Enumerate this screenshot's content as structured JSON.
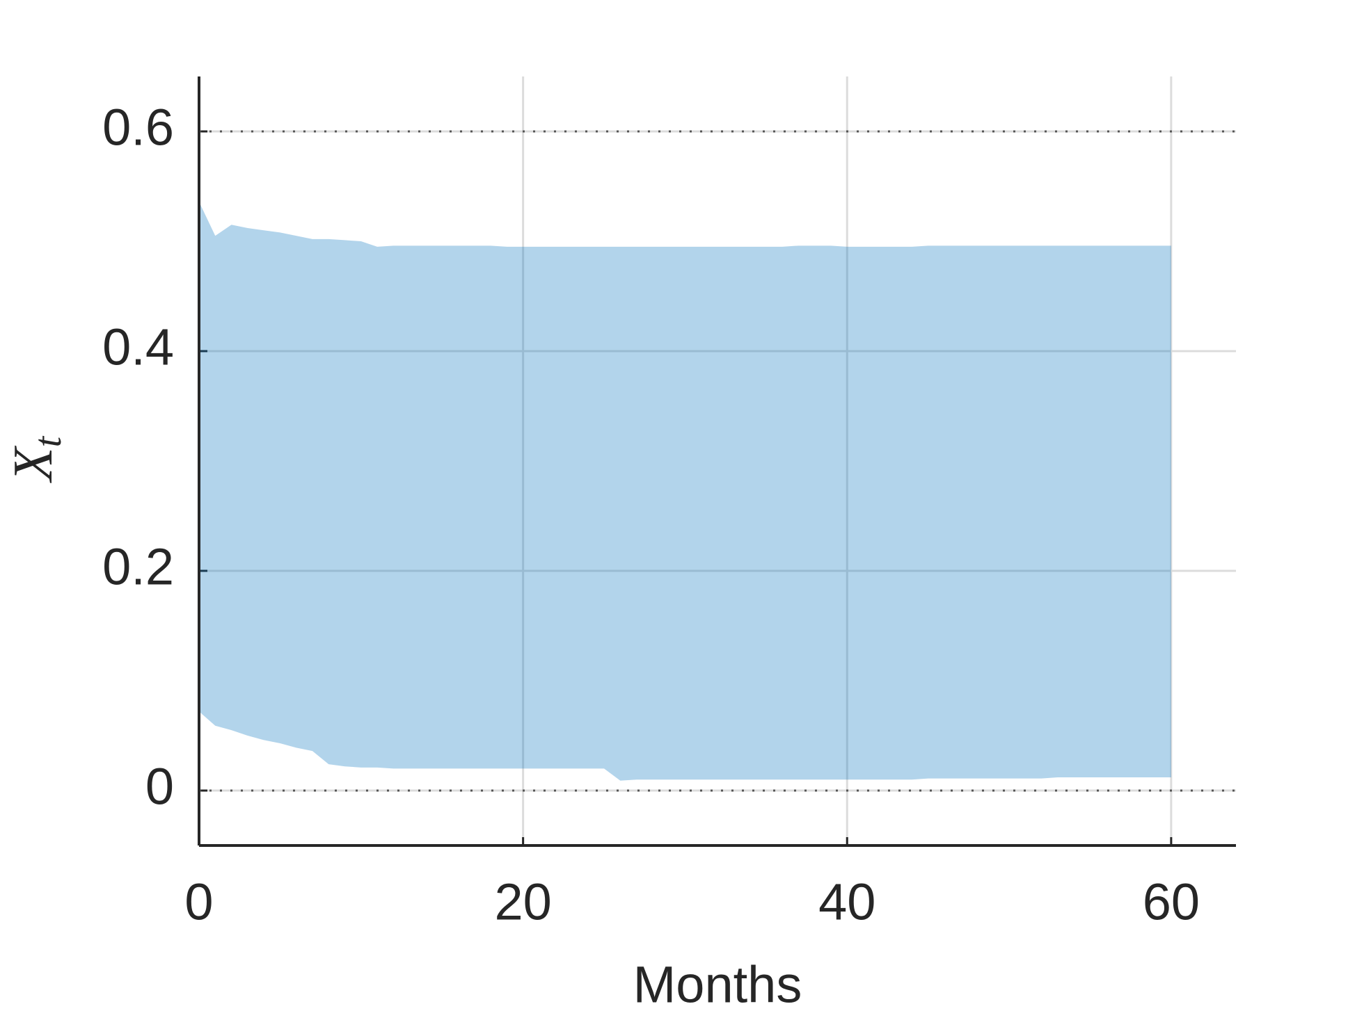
{
  "chart_data": {
    "type": "band",
    "xlabel": "Months",
    "ylabel": "X",
    "ylabel_subscript": "t",
    "x": [
      0,
      1,
      2,
      3,
      4,
      5,
      6,
      7,
      8,
      9,
      10,
      11,
      12,
      13,
      14,
      15,
      16,
      17,
      18,
      19,
      20,
      21,
      22,
      23,
      24,
      25,
      26,
      27,
      28,
      29,
      30,
      31,
      32,
      33,
      34,
      35,
      36,
      37,
      38,
      39,
      40,
      41,
      42,
      43,
      44,
      45,
      46,
      47,
      48,
      49,
      50,
      51,
      52,
      53,
      54,
      55,
      56,
      57,
      58,
      59,
      60
    ],
    "upper": [
      0.536,
      0.505,
      0.515,
      0.512,
      0.51,
      0.508,
      0.505,
      0.502,
      0.502,
      0.501,
      0.5,
      0.495,
      0.496,
      0.496,
      0.496,
      0.496,
      0.496,
      0.496,
      0.496,
      0.495,
      0.495,
      0.495,
      0.495,
      0.495,
      0.495,
      0.495,
      0.495,
      0.495,
      0.495,
      0.495,
      0.495,
      0.495,
      0.495,
      0.495,
      0.495,
      0.495,
      0.495,
      0.496,
      0.496,
      0.496,
      0.495,
      0.495,
      0.495,
      0.495,
      0.495,
      0.496,
      0.496,
      0.496,
      0.496,
      0.496,
      0.496,
      0.496,
      0.496,
      0.496,
      0.496,
      0.496,
      0.496,
      0.496,
      0.496,
      0.496,
      0.496
    ],
    "lower": [
      0.072,
      0.059,
      0.055,
      0.05,
      0.046,
      0.043,
      0.039,
      0.036,
      0.024,
      0.022,
      0.021,
      0.021,
      0.02,
      0.02,
      0.02,
      0.02,
      0.02,
      0.02,
      0.02,
      0.02,
      0.02,
      0.02,
      0.02,
      0.02,
      0.02,
      0.02,
      0.009,
      0.01,
      0.01,
      0.01,
      0.01,
      0.01,
      0.01,
      0.01,
      0.01,
      0.01,
      0.01,
      0.01,
      0.01,
      0.01,
      0.01,
      0.01,
      0.01,
      0.01,
      0.01,
      0.011,
      0.011,
      0.011,
      0.011,
      0.011,
      0.011,
      0.011,
      0.011,
      0.012,
      0.012,
      0.012,
      0.012,
      0.012,
      0.012,
      0.012,
      0.012
    ],
    "color": "#0072bd",
    "opacity": 0.3,
    "xlim": [
      0,
      64
    ],
    "ylim": [
      -0.05,
      0.65
    ],
    "xticks": [
      0,
      20,
      40,
      60
    ],
    "yticks": [
      0,
      0.2,
      0.4,
      0.6
    ],
    "grid": true,
    "reference_lines": [
      0,
      0.6
    ]
  }
}
